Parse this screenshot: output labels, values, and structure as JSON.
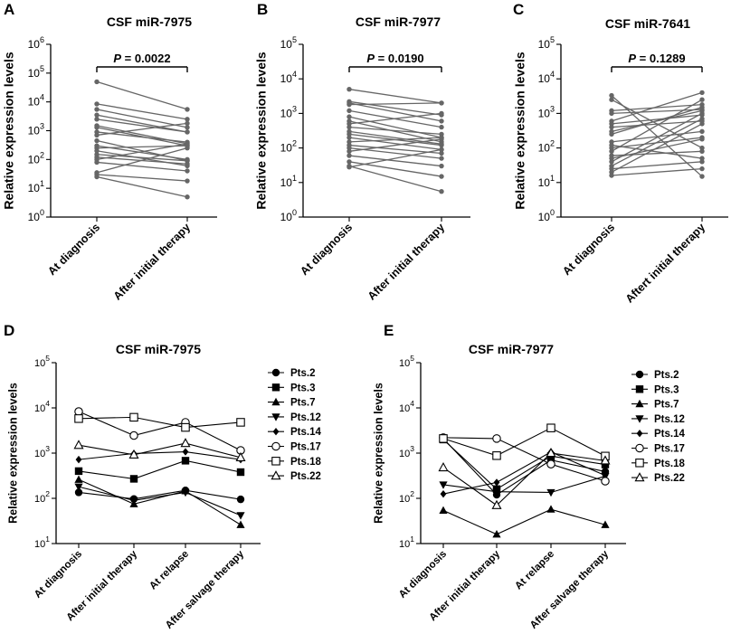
{
  "chart_data": [
    {
      "panel": "A",
      "type": "line",
      "title": "CSF miR-7975",
      "ylabel": "Relative expression levels",
      "yscale": "log",
      "ylim": [
        1,
        1000000
      ],
      "categories": [
        "At diagnosis",
        "After initial therapy"
      ],
      "pvalue": {
        "label": "P",
        "text": " = 0.0022"
      },
      "color": "#666666",
      "pairs": [
        [
          50000,
          5500
        ],
        [
          8500,
          2500
        ],
        [
          5500,
          1300
        ],
        [
          3500,
          900
        ],
        [
          2500,
          900
        ],
        [
          1500,
          350
        ],
        [
          1300,
          300
        ],
        [
          900,
          400
        ],
        [
          450,
          90
        ],
        [
          300,
          100
        ],
        [
          200,
          60
        ],
        [
          150,
          90
        ],
        [
          120,
          70
        ],
        [
          100,
          350
        ],
        [
          80,
          40
        ],
        [
          35,
          250
        ],
        [
          30,
          18
        ],
        [
          25,
          5
        ],
        [
          700,
          1800
        ],
        [
          250,
          300
        ]
      ]
    },
    {
      "panel": "B",
      "type": "line",
      "title": "CSF miR-7977",
      "ylabel": "Relative expression levels",
      "yscale": "log",
      "ylim": [
        1,
        100000
      ],
      "categories": [
        "At diagnosis",
        "After initial therapy"
      ],
      "pvalue": {
        "label": "P",
        "text": " = 0.0190"
      },
      "color": "#666666",
      "pairs": [
        [
          5000,
          2000
        ],
        [
          2200,
          900
        ],
        [
          2000,
          600
        ],
        [
          1800,
          2000
        ],
        [
          1200,
          400
        ],
        [
          800,
          200
        ],
        [
          600,
          150
        ],
        [
          400,
          250
        ],
        [
          250,
          120
        ],
        [
          200,
          90
        ],
        [
          150,
          200
        ],
        [
          120,
          70
        ],
        [
          100,
          50
        ],
        [
          80,
          180
        ],
        [
          60,
          30
        ],
        [
          40,
          15
        ],
        [
          30,
          5.5
        ],
        [
          28,
          90
        ],
        [
          500,
          1000
        ],
        [
          300,
          130
        ]
      ]
    },
    {
      "panel": "C",
      "type": "line",
      "title": "CSF miR-7641",
      "ylabel": "Relative expression levels",
      "yscale": "log",
      "ylim": [
        1,
        100000
      ],
      "categories": [
        "At diagnosis",
        "Aftert initial therapy"
      ],
      "pvalue": {
        "label": "P",
        "text": " = 0.1289"
      },
      "color": "#666666",
      "pairs": [
        [
          3300,
          15
        ],
        [
          2500,
          100
        ],
        [
          1200,
          1800
        ],
        [
          600,
          4000
        ],
        [
          500,
          900
        ],
        [
          400,
          600
        ],
        [
          300,
          1200
        ],
        [
          250,
          1500
        ],
        [
          150,
          300
        ],
        [
          120,
          50
        ],
        [
          100,
          200
        ],
        [
          80,
          2500
        ],
        [
          60,
          80
        ],
        [
          50,
          180
        ],
        [
          40,
          1000
        ],
        [
          30,
          700
        ],
        [
          25,
          40
        ],
        [
          20,
          500
        ],
        [
          16,
          25
        ],
        [
          1000,
          1300
        ]
      ]
    },
    {
      "panel": "D",
      "type": "line",
      "title": "CSF miR-7975",
      "ylabel": "Relative expression levels",
      "yscale": "log",
      "ylim": [
        10,
        100000
      ],
      "categories": [
        "At diagnosis",
        "After initial therapy",
        "At relapse",
        "After salvage therapy"
      ],
      "series": [
        {
          "name": "Pts.2",
          "marker": "circle-filled",
          "values": [
            135,
            97,
            150,
            95
          ]
        },
        {
          "name": "Pts.3",
          "marker": "square-filled",
          "values": [
            400,
            270,
            680,
            380
          ]
        },
        {
          "name": "Pts.7",
          "marker": "tri-up-filled",
          "values": [
            260,
            75,
            145,
            26
          ]
        },
        {
          "name": "Pts.12",
          "marker": "tri-down-filled",
          "values": [
            180,
            90,
            135,
            42
          ]
        },
        {
          "name": "Pts.14",
          "marker": "diamond-filled",
          "values": [
            720,
            980,
            1070,
            720
          ]
        },
        {
          "name": "Pts.17",
          "marker": "circle-open",
          "values": [
            8300,
            2450,
            4800,
            1150
          ]
        },
        {
          "name": "Pts.18",
          "marker": "square-open",
          "values": [
            5800,
            6200,
            3700,
            4800
          ]
        },
        {
          "name": "Pts.22",
          "marker": "tri-up-open",
          "values": [
            1500,
            920,
            1650,
            800
          ]
        }
      ]
    },
    {
      "panel": "E",
      "type": "line",
      "title": "CSF miR-7977",
      "ylabel": "Relative expression levels",
      "yscale": "log",
      "ylim": [
        10,
        100000
      ],
      "categories": [
        "At diagnosis",
        "After initial therapy",
        "At relapse",
        "After salvage therapy"
      ],
      "series": [
        {
          "name": "Pts.2",
          "marker": "circle-filled",
          "values": [
            2100,
            120,
            700,
            390
          ]
        },
        {
          "name": "Pts.3",
          "marker": "square-filled",
          "values": [
            2000,
            160,
            860,
            560
          ]
        },
        {
          "name": "Pts.7",
          "marker": "tri-up-filled",
          "values": [
            54,
            16,
            57,
            26
          ]
        },
        {
          "name": "Pts.12",
          "marker": "tri-down-filled",
          "values": [
            200,
            140,
            135,
            310
          ]
        },
        {
          "name": "Pts.14",
          "marker": "diamond-filled",
          "values": [
            125,
            225,
            1060,
            320
          ]
        },
        {
          "name": "Pts.17",
          "marker": "circle-open",
          "values": [
            2200,
            2100,
            570,
            240
          ]
        },
        {
          "name": "Pts.18",
          "marker": "square-open",
          "values": [
            2100,
            880,
            3600,
            860
          ]
        },
        {
          "name": "Pts.22",
          "marker": "tri-up-open",
          "values": [
            480,
            70,
            1000,
            680
          ]
        }
      ]
    }
  ]
}
